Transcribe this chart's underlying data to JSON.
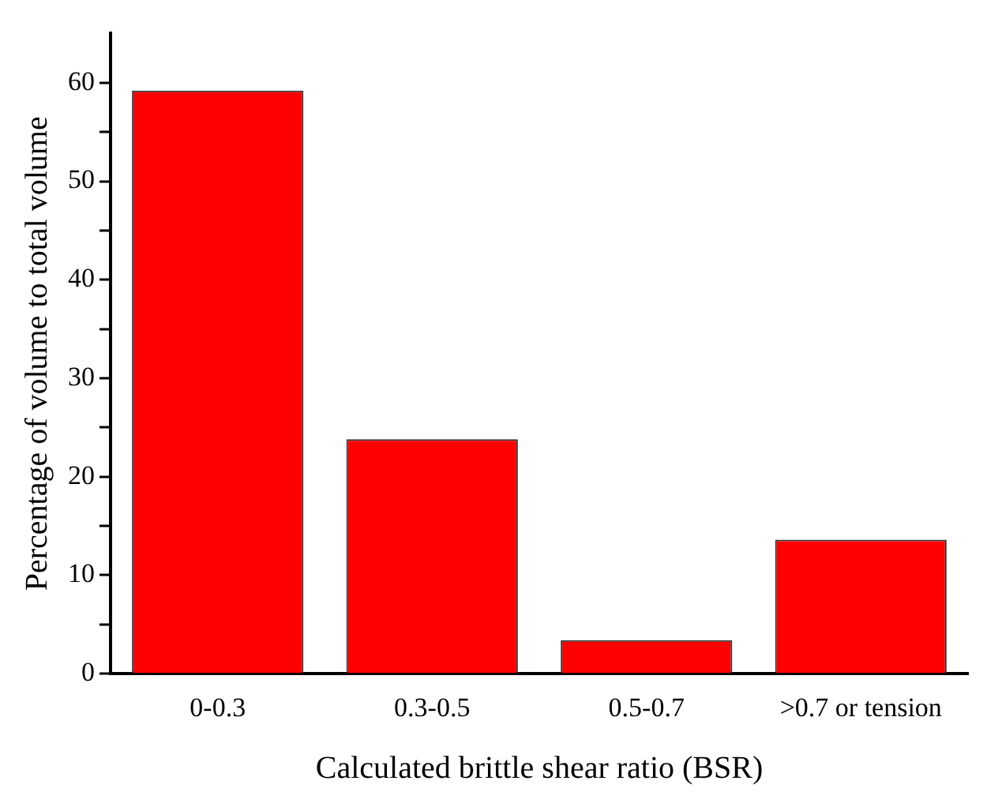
{
  "chart_data": {
    "type": "bar",
    "xlabel": "Calculated brittle shear ratio (BSR)",
    "ylabel": "Percentage of volume to total volume",
    "categories": [
      "0-0.3",
      "0.3-0.5",
      "0.5-0.7",
      ">0.7 or tension"
    ],
    "values": [
      59.2,
      23.8,
      3.4,
      13.6
    ],
    "color": "#ff0000",
    "ylim": [
      0,
      65
    ],
    "yticks": [
      0,
      {
        "value": 5,
        "label": null
      },
      10,
      {
        "value": 15,
        "label": null
      },
      20,
      {
        "value": 25,
        "label": null
      },
      30,
      {
        "value": 35,
        "label": null
      },
      40,
      {
        "value": 45,
        "label": null
      },
      50,
      {
        "value": 55,
        "label": null
      },
      60
    ],
    "grid": false
  }
}
